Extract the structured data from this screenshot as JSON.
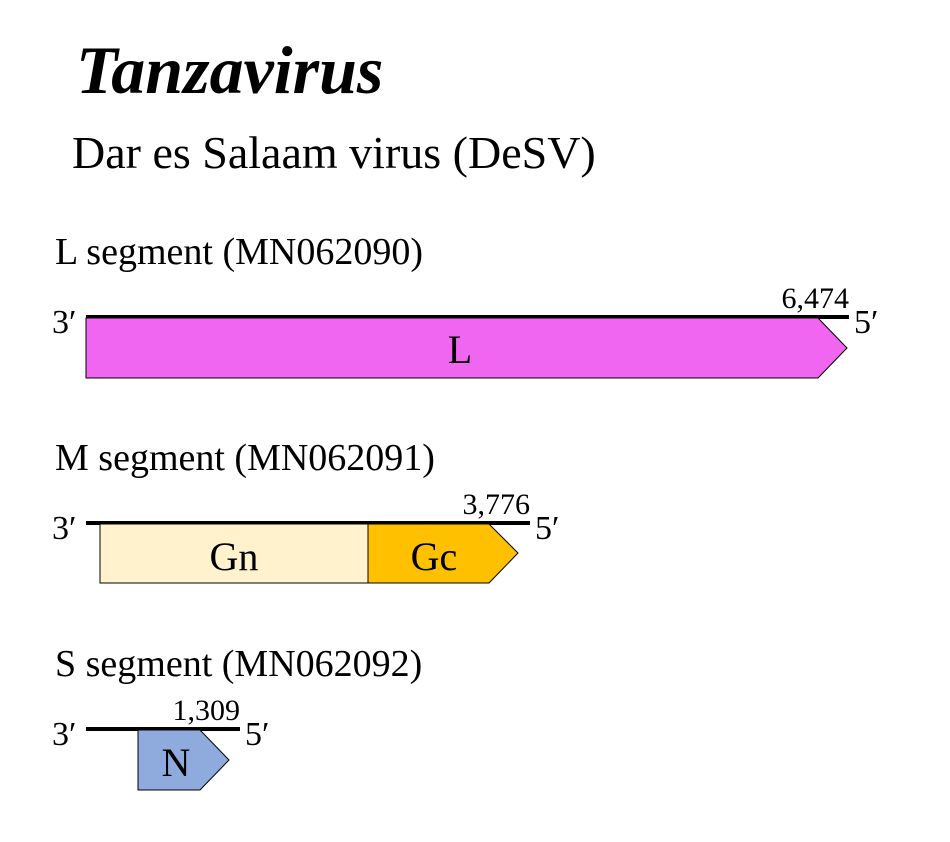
{
  "header": {
    "genus": "Tanzavirus",
    "virus": "Dar es Salaam virus (DeSV)"
  },
  "segments": [
    {
      "label": "L segment (MN062090)",
      "length_label": "6,474",
      "end_left": "3′",
      "end_right": "5′",
      "genes": [
        {
          "name": "L",
          "color": "#f066f0"
        }
      ]
    },
    {
      "label": "M segment (MN062091)",
      "length_label": "3,776",
      "end_left": "3′",
      "end_right": "5′",
      "genes": [
        {
          "name": "Gn",
          "color": "#fff2cc"
        },
        {
          "name": "Gc",
          "color": "#ffc000"
        }
      ]
    },
    {
      "label": "S segment (MN062092)",
      "length_label": "1,309",
      "end_left": "3′",
      "end_right": "5′",
      "genes": [
        {
          "name": "N",
          "color": "#8faadc"
        }
      ]
    }
  ]
}
